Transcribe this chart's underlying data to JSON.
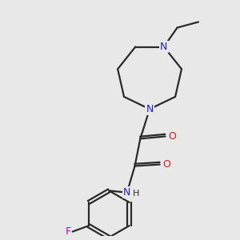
{
  "bg_color": "#e8e8e8",
  "bond_color": "#2a2a2a",
  "N_color": "#2020cc",
  "O_color": "#cc2020",
  "F_color": "#bb00bb",
  "H_color": "#2a2a2a",
  "line_width": 1.6,
  "figsize": [
    3.0,
    3.0
  ],
  "dpi": 100,
  "xlim": [
    0,
    3.0
  ],
  "ylim": [
    0,
    3.0
  ]
}
